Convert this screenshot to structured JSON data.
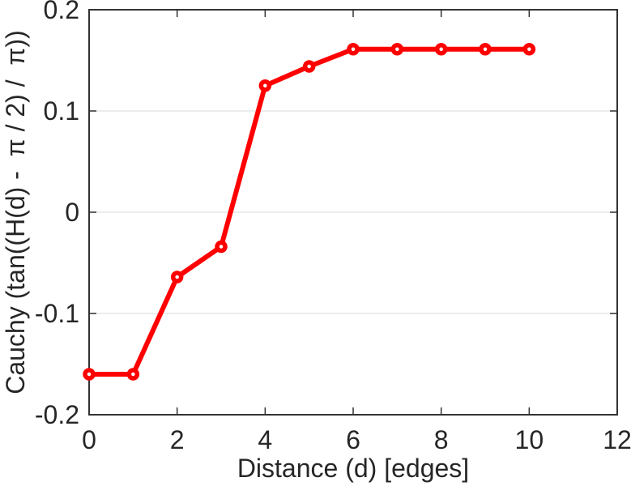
{
  "figure": {
    "background": "#ffffff"
  },
  "chart_data": {
    "type": "line",
    "title": "",
    "xlabel": "Distance (d) [edges]",
    "ylabel": "Cauchy (tan((H(d) -  π / 2) /  π))",
    "series": [
      {
        "name": "Cauchy",
        "color": "#ff0000",
        "marker": "open-circle-thick",
        "x": [
          0,
          1,
          2,
          3,
          4,
          5,
          6,
          7,
          8,
          9,
          10
        ],
        "y": [
          -0.16,
          -0.16,
          -0.064,
          -0.034,
          0.125,
          0.144,
          0.161,
          0.161,
          0.161,
          0.161,
          0.161
        ]
      }
    ],
    "xlim": [
      0,
      12
    ],
    "ylim": [
      -0.2,
      0.2
    ],
    "xticks": [
      0,
      2,
      4,
      6,
      8,
      10,
      12
    ],
    "xtick_labels": [
      "0",
      "2",
      "4",
      "6",
      "8",
      "10",
      "12"
    ],
    "yticks": [
      -0.2,
      -0.1,
      0,
      0.1,
      0.2
    ],
    "ytick_labels": [
      "-0.2",
      "-0.1",
      "0",
      "0.1",
      "0.2"
    ],
    "grid": "horizontal-only",
    "legend_position": "none",
    "box": "on",
    "colors": {
      "axis": "#333333",
      "grid": "#e6e6e6",
      "text": "#262626",
      "background": "#ffffff"
    }
  }
}
